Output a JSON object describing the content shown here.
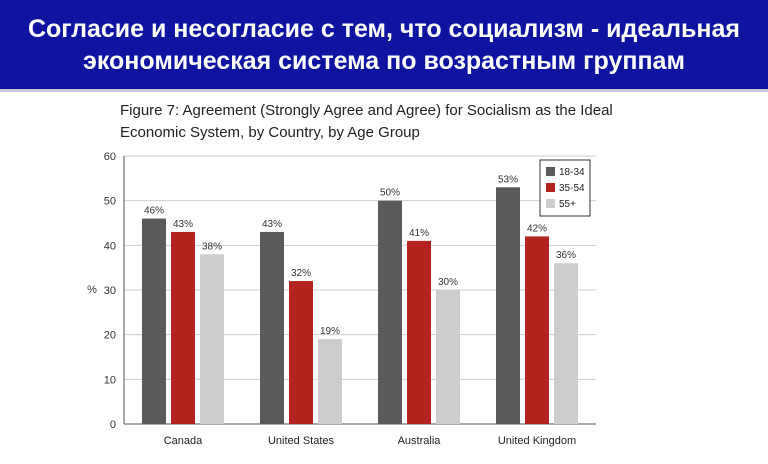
{
  "banner": {
    "line1": "Согласие и несогласие с тем, что социализм - идеальная",
    "line2": "экономическая система по возрастным группам"
  },
  "colors": {
    "banner_bg": "#0f14a0",
    "series": [
      "#5a5a5a",
      "#b3231f",
      "#cdcdcd"
    ]
  },
  "chart_data": {
    "type": "bar",
    "title": "Figure 7: Agreement (Strongly Agree and Agree) for Socialism as the Ideal Economic System, by Country, by Age Group",
    "ylabel": "%",
    "ylim": [
      0,
      60
    ],
    "yticks": [
      0,
      10,
      20,
      30,
      40,
      50,
      60
    ],
    "grid": true,
    "legend_position": "top-right",
    "categories": [
      "Canada",
      "United States",
      "Australia",
      "United Kingdom"
    ],
    "series": [
      {
        "name": "18-34",
        "values": [
          46,
          43,
          50,
          53
        ],
        "labels": [
          "46%",
          "43%",
          "50%",
          "53%"
        ]
      },
      {
        "name": "35-54",
        "values": [
          43,
          32,
          41,
          42
        ],
        "labels": [
          "43%",
          "32%",
          "41%",
          "42%"
        ]
      },
      {
        "name": "55+",
        "values": [
          38,
          19,
          30,
          36
        ],
        "labels": [
          "38%",
          "19%",
          "30%",
          "36%"
        ]
      }
    ]
  }
}
